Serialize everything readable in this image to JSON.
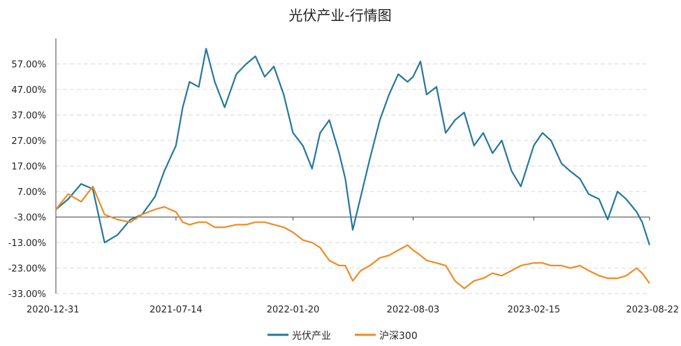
{
  "chart_data": {
    "type": "line",
    "title": "光伏产业-行情图",
    "xlabel": "",
    "ylabel": "",
    "x_tick_labels": [
      "2020-12-31",
      "2021-07-14",
      "2022-01-20",
      "2022-08-03",
      "2023-02-15",
      "2023-08-22"
    ],
    "y_tick_labels": [
      "57.00%",
      "47.00%",
      "37.00%",
      "27.00%",
      "17.00%",
      "7.00%",
      "-3.00%",
      "-13.00%",
      "-23.00%",
      "-33.00%"
    ],
    "y_tick_values": [
      57,
      47,
      37,
      27,
      17,
      7,
      -3,
      -13,
      -23,
      -33
    ],
    "ylim": [
      -33,
      67
    ],
    "grid": true,
    "legend_position": "bottom",
    "colors": {
      "series1": "#24779c",
      "series2": "#ef8b24",
      "grid": "#d9d9d9",
      "axis": "#444444"
    },
    "x": [
      "2020-12-31",
      "2021-01-20",
      "2021-02-10",
      "2021-03-01",
      "2021-03-20",
      "2021-04-10",
      "2021-05-01",
      "2021-05-20",
      "2021-06-10",
      "2021-06-25",
      "2021-07-14",
      "2021-07-25",
      "2021-08-05",
      "2021-08-20",
      "2021-09-01",
      "2021-09-15",
      "2021-10-01",
      "2021-10-20",
      "2021-11-05",
      "2021-11-20",
      "2021-12-05",
      "2021-12-20",
      "2022-01-05",
      "2022-01-20",
      "2022-02-05",
      "2022-02-20",
      "2022-03-05",
      "2022-03-20",
      "2022-04-05",
      "2022-04-15",
      "2022-04-27",
      "2022-05-10",
      "2022-05-25",
      "2022-06-10",
      "2022-06-25",
      "2022-07-10",
      "2022-07-25",
      "2022-08-03",
      "2022-08-15",
      "2022-08-25",
      "2022-09-10",
      "2022-09-25",
      "2022-10-10",
      "2022-10-25",
      "2022-11-10",
      "2022-11-25",
      "2022-12-10",
      "2022-12-25",
      "2023-01-10",
      "2023-01-25",
      "2023-02-15",
      "2023-03-01",
      "2023-03-15",
      "2023-04-01",
      "2023-04-15",
      "2023-05-01",
      "2023-05-15",
      "2023-06-01",
      "2023-06-15",
      "2023-07-01",
      "2023-07-15",
      "2023-08-01",
      "2023-08-10",
      "2023-08-22"
    ],
    "series": [
      {
        "name": "光伏产业",
        "values": [
          0.0,
          4.0,
          10.0,
          8.0,
          -13.0,
          -10.0,
          -4.0,
          -2.0,
          5.0,
          15.0,
          25.0,
          40.0,
          50.0,
          48.0,
          63.0,
          50.0,
          40.0,
          53.0,
          57.0,
          60.0,
          52.0,
          56.0,
          45.0,
          30.0,
          25.0,
          16.0,
          30.0,
          35.0,
          22.0,
          12.0,
          -8.0,
          5.0,
          20.0,
          35.0,
          45.0,
          53.0,
          50.0,
          52.0,
          58.0,
          45.0,
          48.0,
          30.0,
          35.0,
          38.0,
          25.0,
          30.0,
          22.0,
          27.0,
          15.0,
          9.0,
          25.0,
          30.0,
          27.0,
          18.0,
          15.0,
          12.0,
          6.0,
          4.0,
          -4.0,
          7.0,
          4.0,
          -1.0,
          -5.0,
          -14.0
        ]
      },
      {
        "name": "沪深300",
        "values": [
          0.0,
          6.0,
          3.0,
          9.0,
          -2.0,
          -4.0,
          -5.0,
          -2.0,
          0.0,
          1.0,
          -1.0,
          -5.0,
          -6.0,
          -5.0,
          -5.0,
          -7.0,
          -7.0,
          -6.0,
          -6.0,
          -5.0,
          -5.0,
          -6.0,
          -7.0,
          -9.0,
          -12.0,
          -13.0,
          -15.0,
          -20.0,
          -22.0,
          -22.0,
          -28.0,
          -24.0,
          -22.0,
          -19.0,
          -18.0,
          -16.0,
          -14.0,
          -16.0,
          -18.0,
          -20.0,
          -21.0,
          -22.0,
          -28.0,
          -31.0,
          -28.0,
          -27.0,
          -25.0,
          -26.0,
          -24.0,
          -22.0,
          -21.0,
          -21.0,
          -22.0,
          -22.0,
          -23.0,
          -22.0,
          -24.0,
          -26.0,
          -27.0,
          -27.0,
          -26.0,
          -23.0,
          -25.0,
          -29.0
        ]
      }
    ]
  }
}
